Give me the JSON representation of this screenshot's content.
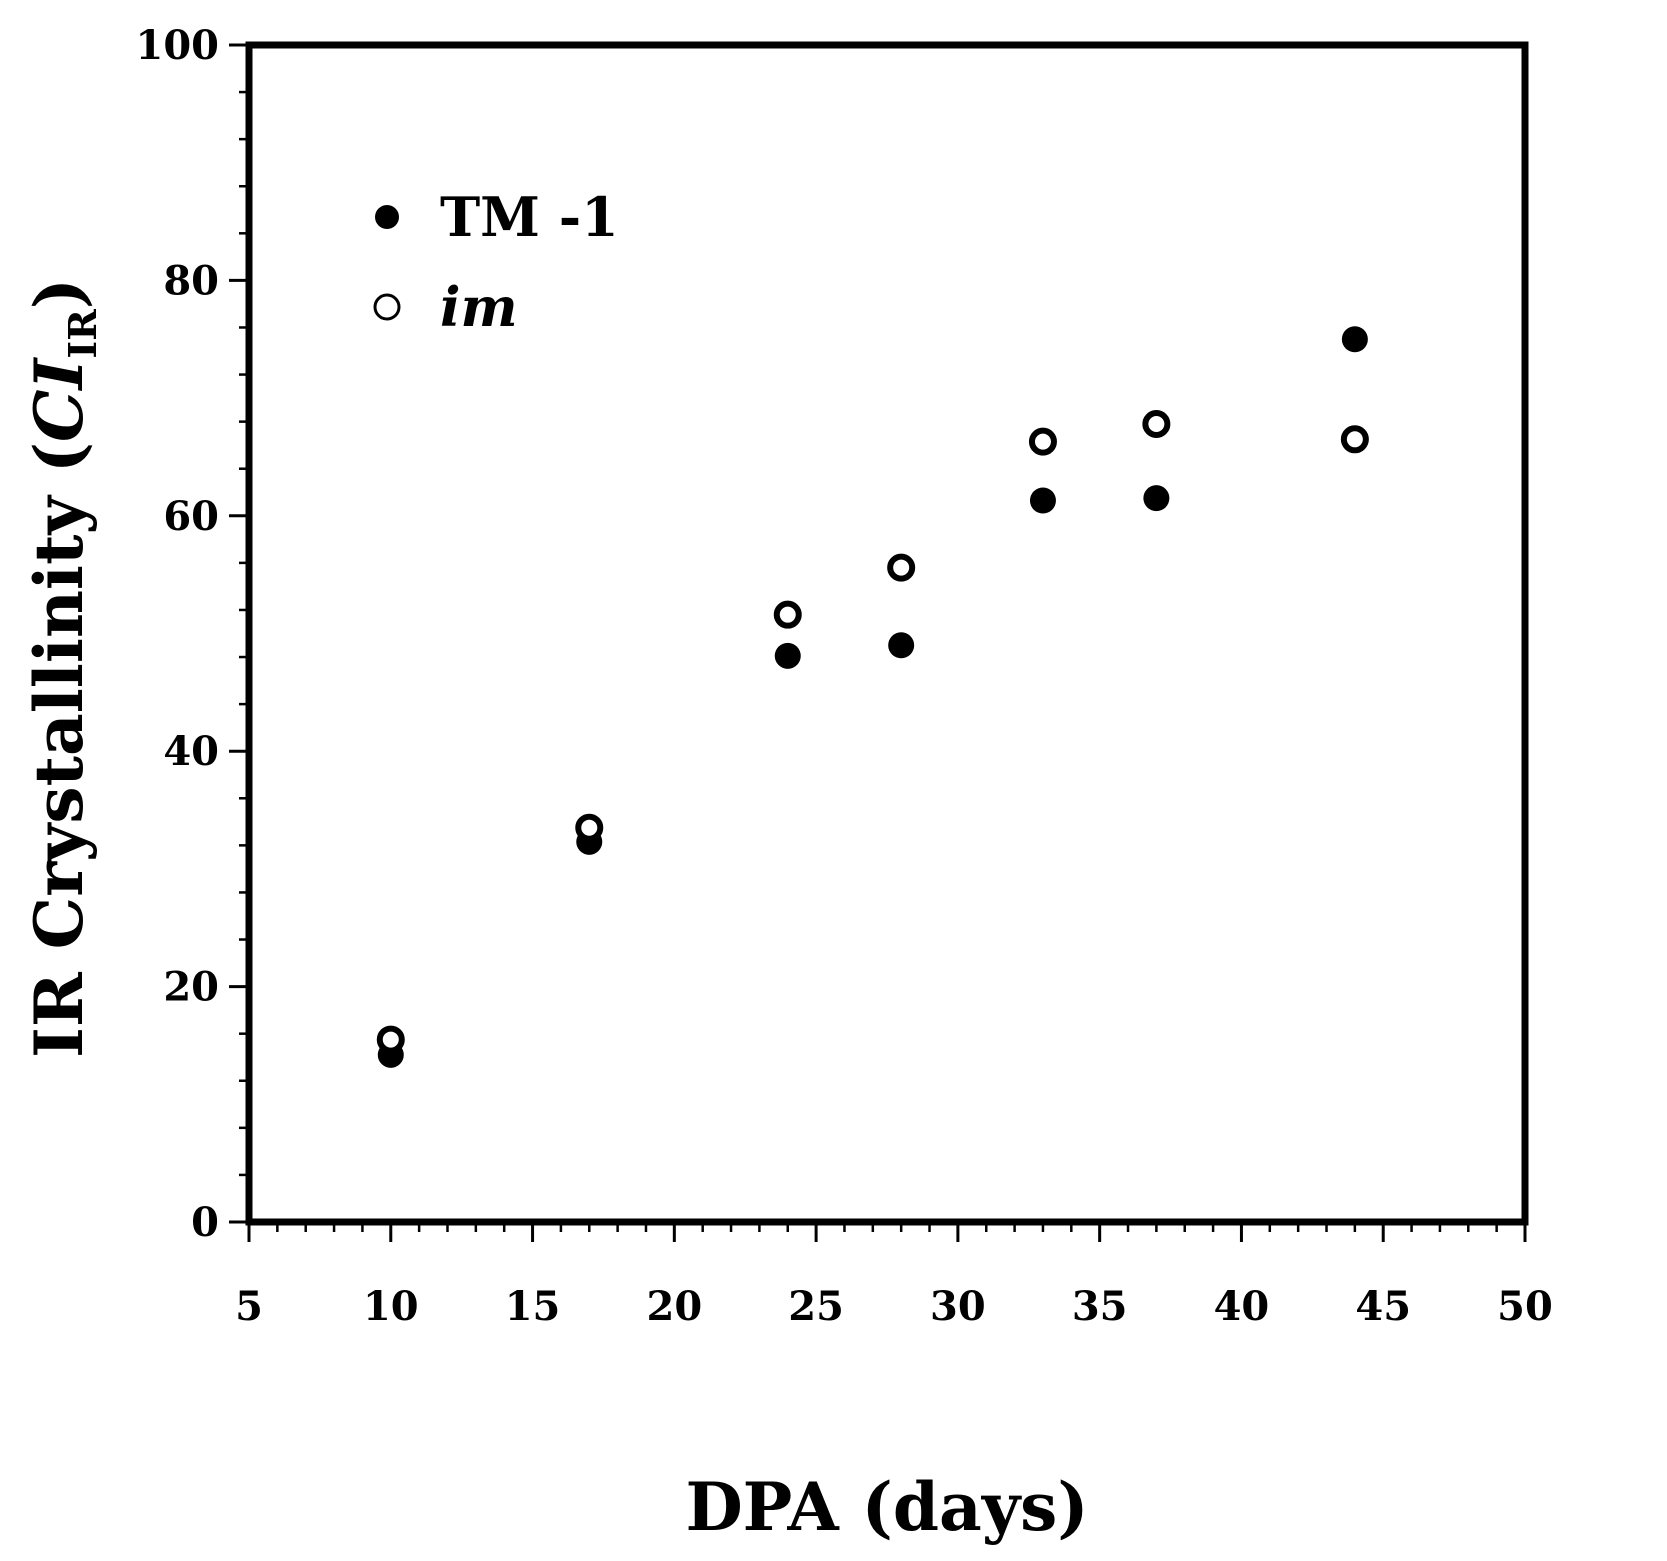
{
  "chart_data": {
    "type": "scatter",
    "title": "",
    "xlabel": "DPA (days)",
    "ylabel": {
      "prefix": "IR Crystallinity (",
      "italic": "CI",
      "subscript": "IR",
      "suffix": ")"
    },
    "xlim": [
      5,
      50
    ],
    "ylim": [
      0,
      100
    ],
    "x_ticks": [
      5,
      10,
      15,
      20,
      25,
      30,
      35,
      40,
      45,
      50
    ],
    "y_ticks": [
      0,
      20,
      40,
      60,
      80,
      100
    ],
    "x_minor_step": 1,
    "y_minor_step": 4,
    "grid": false,
    "legend_position": "top-left",
    "series": [
      {
        "name": "TM -1",
        "marker": "filled-circle",
        "color": "#000000",
        "italic": false,
        "points": [
          {
            "x": 10,
            "y": 14.2
          },
          {
            "x": 17,
            "y": 32.3
          },
          {
            "x": 24,
            "y": 48.1
          },
          {
            "x": 28,
            "y": 49.0
          },
          {
            "x": 33,
            "y": 61.3
          },
          {
            "x": 37,
            "y": 61.5
          },
          {
            "x": 44,
            "y": 75.0
          }
        ]
      },
      {
        "name": "im",
        "marker": "open-circle",
        "color": "#000000",
        "italic": true,
        "points": [
          {
            "x": 10,
            "y": 15.5
          },
          {
            "x": 17,
            "y": 33.5
          },
          {
            "x": 24,
            "y": 51.6
          },
          {
            "x": 28,
            "y": 55.6
          },
          {
            "x": 33,
            "y": 66.3
          },
          {
            "x": 37,
            "y": 67.8
          },
          {
            "x": 44,
            "y": 66.5
          }
        ]
      }
    ]
  }
}
